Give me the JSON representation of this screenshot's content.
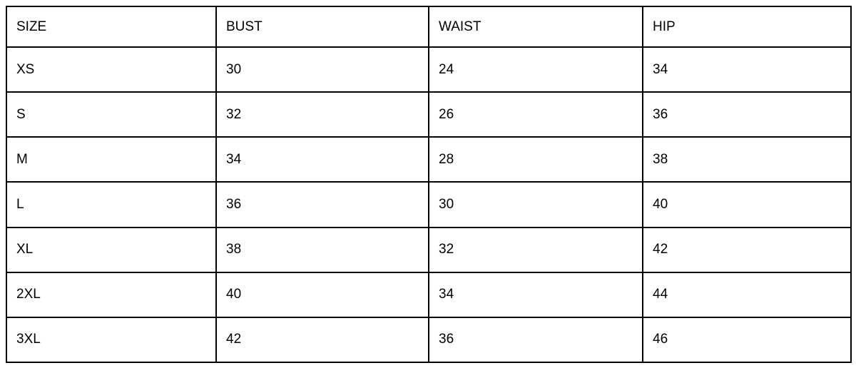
{
  "table": {
    "columns": [
      "SIZE",
      "BUST",
      "WAIST",
      "HIP"
    ],
    "rows": [
      {
        "size": "XS",
        "bust": "30",
        "waist": "24",
        "hip": "34"
      },
      {
        "size": "S",
        "bust": "32",
        "waist": "26",
        "hip": "36"
      },
      {
        "size": "M",
        "bust": "34",
        "waist": "28",
        "hip": "38"
      },
      {
        "size": "L",
        "bust": "36",
        "waist": "30",
        "hip": "40"
      },
      {
        "size": "XL",
        "bust": "38",
        "waist": "32",
        "hip": "42"
      },
      {
        "size": "2XL",
        "bust": "40",
        "waist": "34",
        "hip": "44"
      },
      {
        "size": "3XL",
        "bust": "42",
        "waist": "36",
        "hip": "46"
      }
    ]
  },
  "colors": {
    "border": "#000000",
    "text": "#000000",
    "background": "#ffffff"
  }
}
